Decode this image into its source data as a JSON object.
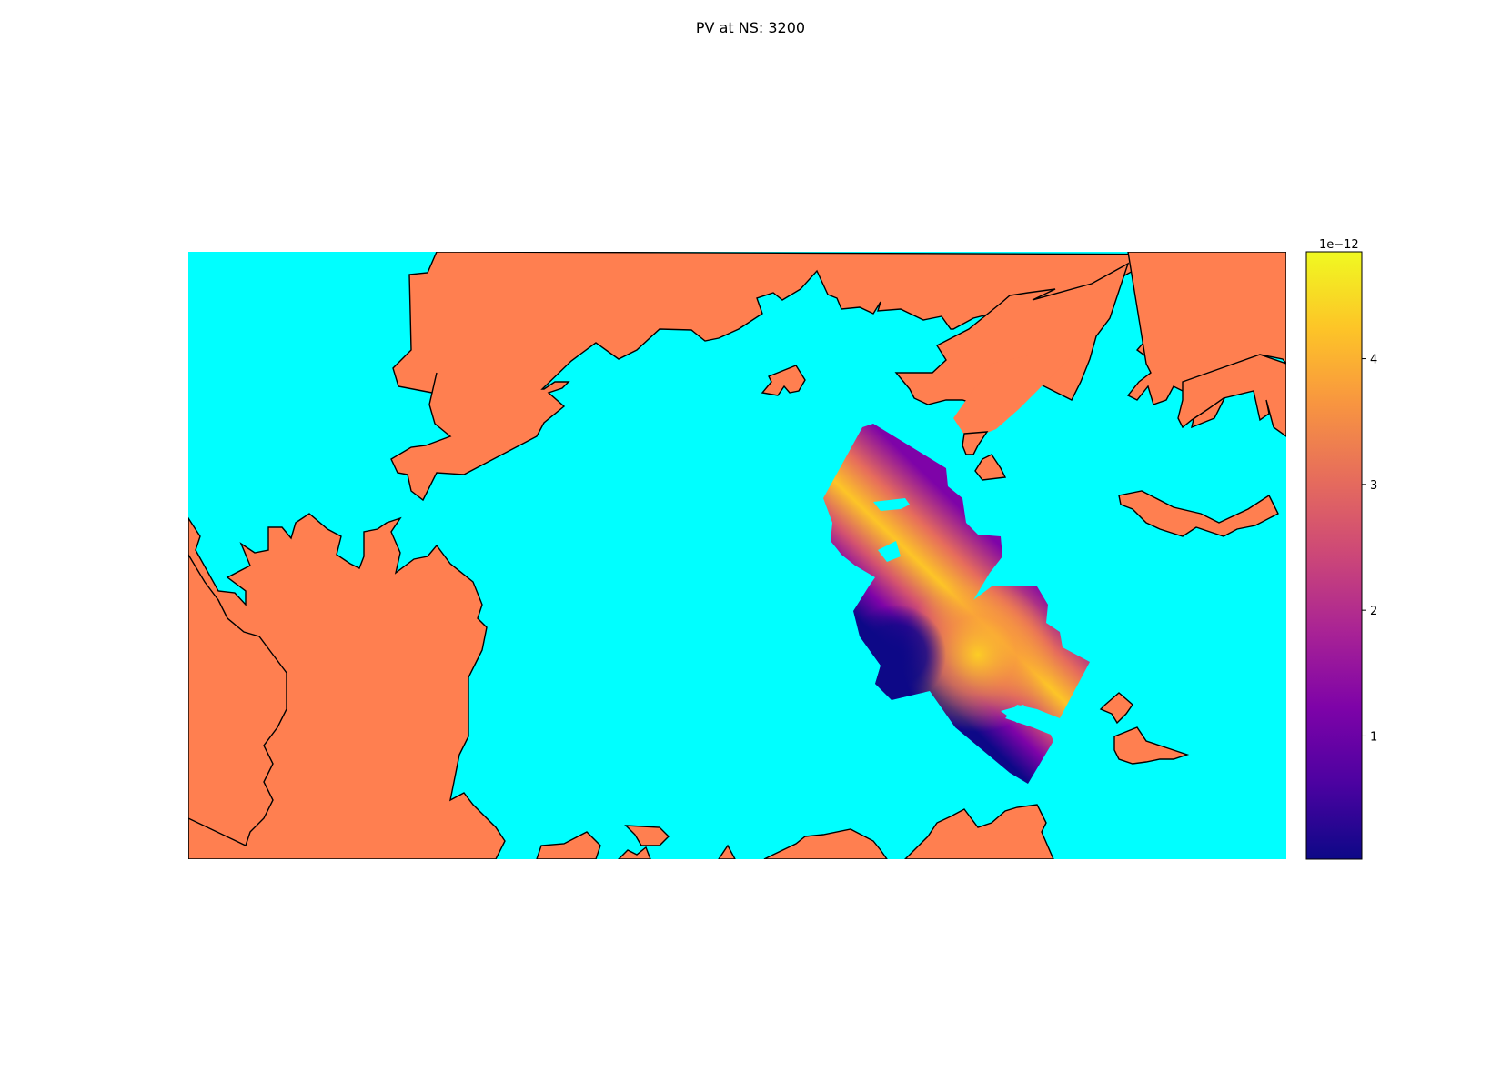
{
  "title": "PV at NS: 3200",
  "colors": {
    "ocean": "#00ffff",
    "land": "#ff7f50",
    "coastline": "#000000",
    "colormap": "plasma"
  },
  "colorbar": {
    "multiplier": "1e−12",
    "ticks": [
      {
        "value": 1,
        "label": "1"
      },
      {
        "value": 2,
        "label": "2"
      },
      {
        "value": 3,
        "label": "3"
      },
      {
        "value": 4,
        "label": "4"
      }
    ],
    "vmin": 0.02,
    "vmax": 4.85
  },
  "field": {
    "variable": "PV",
    "level": "NS: 3200",
    "max_value": 4.6,
    "min_value": 0.05,
    "unit_scale": "1e−12"
  }
}
